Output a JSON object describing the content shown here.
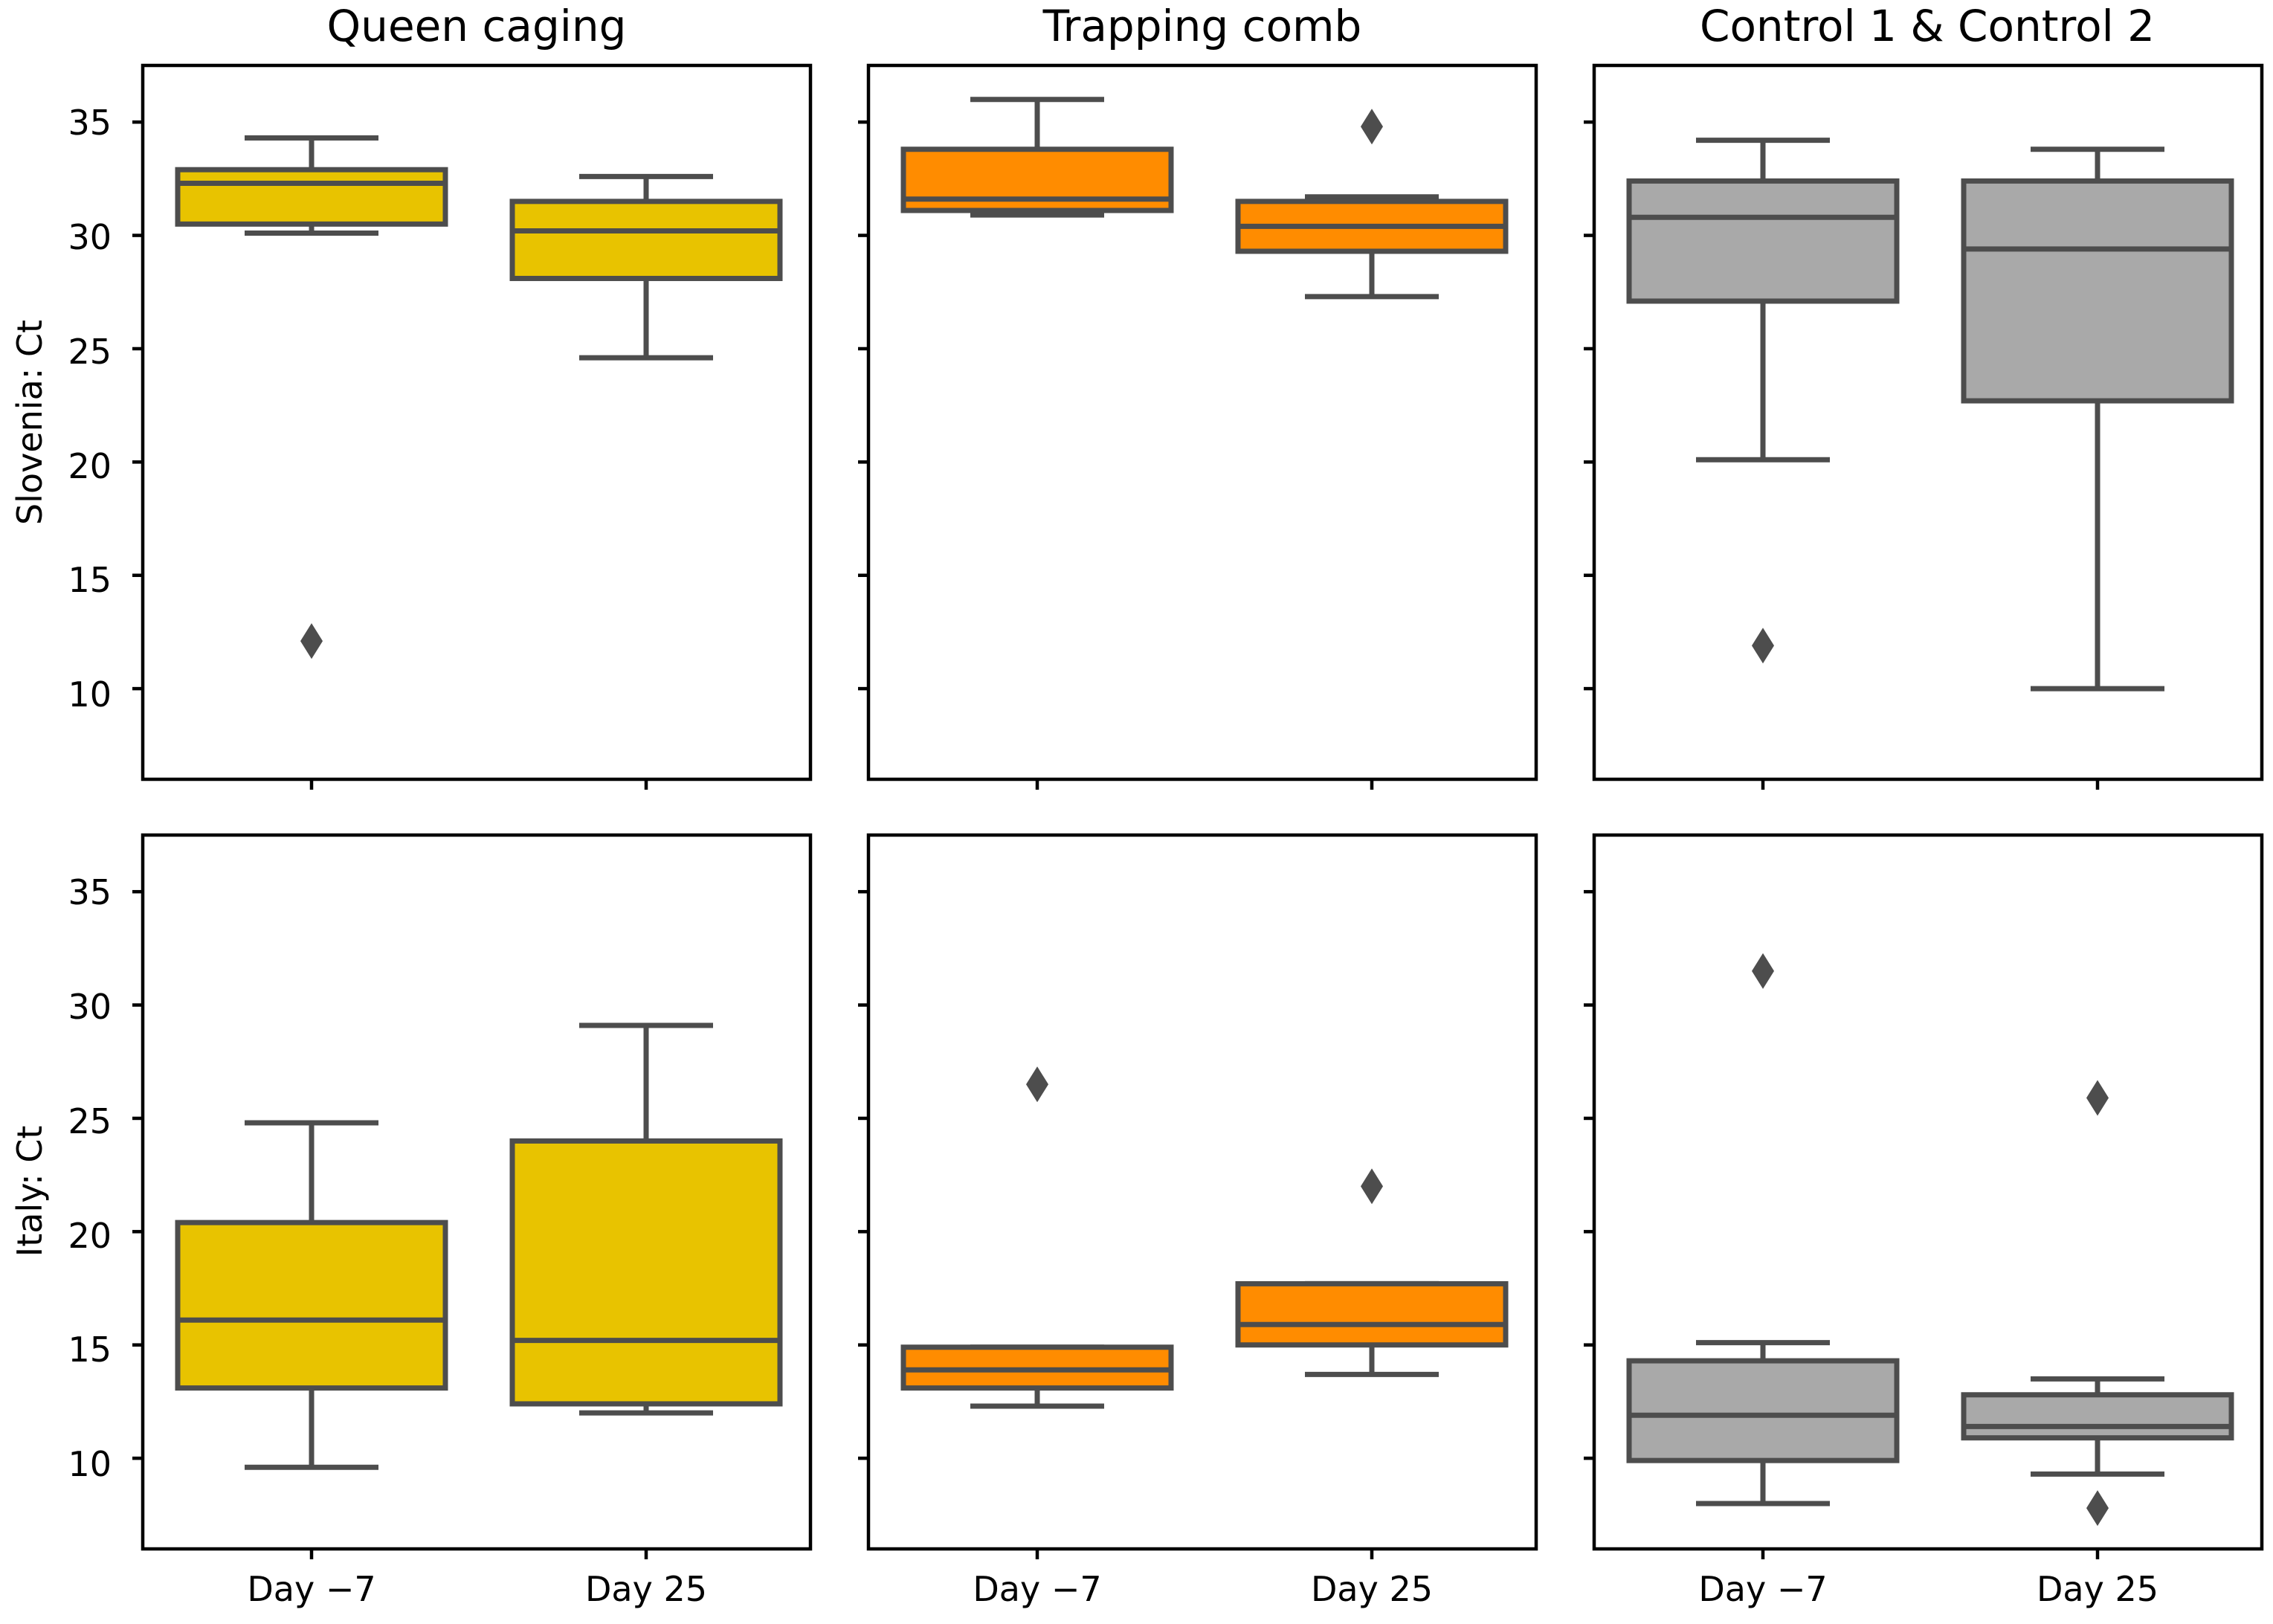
{
  "chart_data": {
    "type": "boxplot",
    "layout": "2 rows x 3 columns",
    "columns": [
      "Queen caging",
      "Trapping comb",
      "Control 1 & Control 2"
    ],
    "rows": [
      {
        "name": "Slovenia",
        "ylabel": "Slovenia: Ct"
      },
      {
        "name": "Italy",
        "ylabel": "Italy: Ct"
      }
    ],
    "categories": [
      "Day −7",
      "Day 25"
    ],
    "ylim": [
      6,
      37.5
    ],
    "yticks": [
      10,
      15,
      20,
      25,
      30,
      35
    ],
    "ytick_labels": [
      "10",
      "15",
      "20",
      "25",
      "30",
      "35"
    ],
    "colors": {
      "Queen caging": "#E8C300",
      "Trapping comb": "#FF8C00",
      "Control 1 & Control 2": "#A9A9A9",
      "line": "#4d4d4d",
      "frame": "#000000"
    },
    "series": [
      {
        "row": "Slovenia",
        "column": "Queen caging",
        "category": "Day −7",
        "whislo": 30.1,
        "q1": 30.5,
        "median": 32.3,
        "q3": 32.9,
        "whishi": 34.3,
        "fliers": [
          12.1
        ]
      },
      {
        "row": "Slovenia",
        "column": "Queen caging",
        "category": "Day 25",
        "whislo": 24.6,
        "q1": 28.1,
        "median": 30.2,
        "q3": 31.5,
        "whishi": 32.6,
        "fliers": []
      },
      {
        "row": "Slovenia",
        "column": "Trapping comb",
        "category": "Day −7",
        "whislo": 30.9,
        "q1": 31.1,
        "median": 31.6,
        "q3": 33.8,
        "whishi": 36.0,
        "fliers": []
      },
      {
        "row": "Slovenia",
        "column": "Trapping comb",
        "category": "Day 25",
        "whislo": 27.3,
        "q1": 29.3,
        "median": 30.4,
        "q3": 31.5,
        "whishi": 31.7,
        "fliers": [
          34.8
        ]
      },
      {
        "row": "Slovenia",
        "column": "Control 1 & Control 2",
        "category": "Day −7",
        "whislo": 20.1,
        "q1": 27.1,
        "median": 30.8,
        "q3": 32.4,
        "whishi": 34.2,
        "fliers": [
          11.9
        ]
      },
      {
        "row": "Slovenia",
        "column": "Control 1 & Control 2",
        "category": "Day 25",
        "whislo": 10.0,
        "q1": 22.7,
        "median": 29.4,
        "q3": 32.4,
        "whishi": 33.8,
        "fliers": []
      },
      {
        "row": "Italy",
        "column": "Queen caging",
        "category": "Day −7",
        "whislo": 9.6,
        "q1": 13.1,
        "median": 16.1,
        "q3": 20.4,
        "whishi": 24.8,
        "fliers": []
      },
      {
        "row": "Italy",
        "column": "Queen caging",
        "category": "Day 25",
        "whislo": 12.0,
        "q1": 12.4,
        "median": 15.2,
        "q3": 24.0,
        "whishi": 29.1,
        "fliers": []
      },
      {
        "row": "Italy",
        "column": "Trapping comb",
        "category": "Day −7",
        "whislo": 12.3,
        "q1": 13.1,
        "median": 13.9,
        "q3": 14.9,
        "whishi": 14.9,
        "fliers": [
          26.5
        ]
      },
      {
        "row": "Italy",
        "column": "Trapping comb",
        "category": "Day 25",
        "whislo": 13.7,
        "q1": 15.0,
        "median": 15.9,
        "q3": 17.7,
        "whishi": 17.7,
        "fliers": [
          22.0
        ]
      },
      {
        "row": "Italy",
        "column": "Control 1 & Control 2",
        "category": "Day −7",
        "whislo": 8.0,
        "q1": 9.9,
        "median": 11.9,
        "q3": 14.3,
        "whishi": 15.1,
        "fliers": [
          31.5
        ]
      },
      {
        "row": "Italy",
        "column": "Control 1 & Control 2",
        "category": "Day 25",
        "whislo": 9.3,
        "q1": 10.9,
        "median": 11.4,
        "q3": 12.8,
        "whishi": 13.5,
        "fliers": [
          7.8,
          25.9
        ]
      }
    ]
  }
}
